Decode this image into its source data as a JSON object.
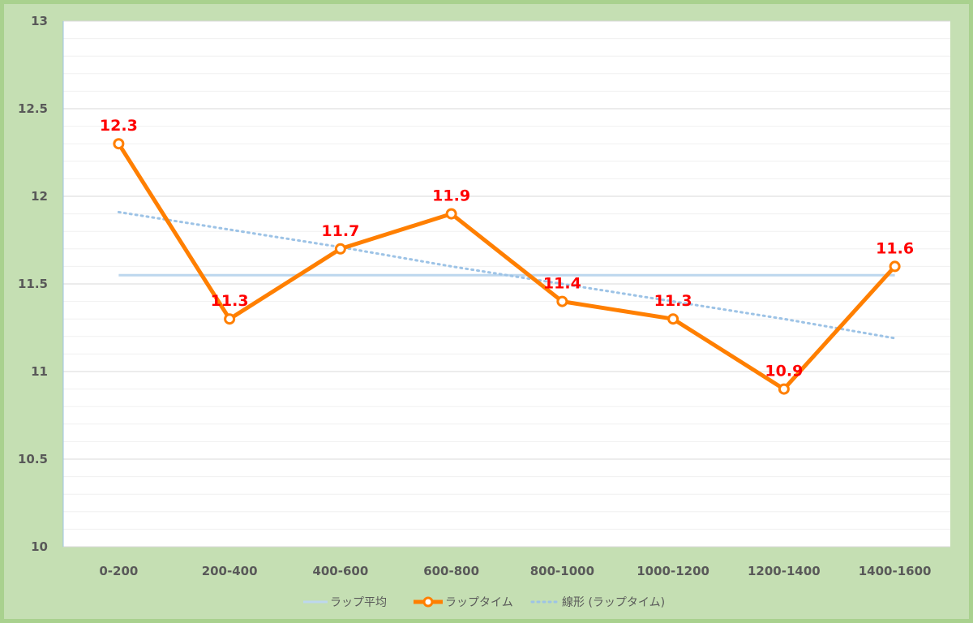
{
  "chart_data": {
    "type": "line",
    "categories": [
      "0-200",
      "200-400",
      "400-600",
      "600-800",
      "800-1000",
      "1000-1200",
      "1200-1400",
      "1400-1600"
    ],
    "series": [
      {
        "name": "ラップ平均",
        "values": [
          11.55,
          11.55,
          11.55,
          11.55,
          11.55,
          11.55,
          11.55,
          11.55
        ],
        "color": "#bdd7ee",
        "style": "solid"
      },
      {
        "name": "ラップタイム",
        "values": [
          12.3,
          11.3,
          11.7,
          11.9,
          11.4,
          11.3,
          10.9,
          11.6
        ],
        "color": "#ff7f00",
        "style": "solid-markers",
        "data_labels": [
          "12.3",
          "11.3",
          "11.7",
          "11.9",
          "11.4",
          "11.3",
          "10.9",
          "11.6"
        ]
      },
      {
        "name": "線形 (ラップタイム)",
        "values": [
          11.91,
          11.81,
          11.71,
          11.6,
          11.5,
          11.4,
          11.3,
          11.19
        ],
        "color": "#9dc3e6",
        "style": "dotted"
      }
    ],
    "ylim": [
      10,
      13
    ],
    "y_ticks": [
      "13",
      "12.5",
      "12",
      "11.5",
      "11",
      "10.5",
      "10"
    ],
    "y_tick_values": [
      13,
      12.5,
      12,
      11.5,
      11,
      10.5,
      10
    ],
    "grid": true,
    "legend_position": "bottom",
    "colors": {
      "background": "#c5dfb3",
      "border": "#a9d18e",
      "plot_bg": "#ffffff",
      "grid": "#d9d9d9",
      "data_label": "#ff0000",
      "axis_text": "#595959"
    }
  }
}
